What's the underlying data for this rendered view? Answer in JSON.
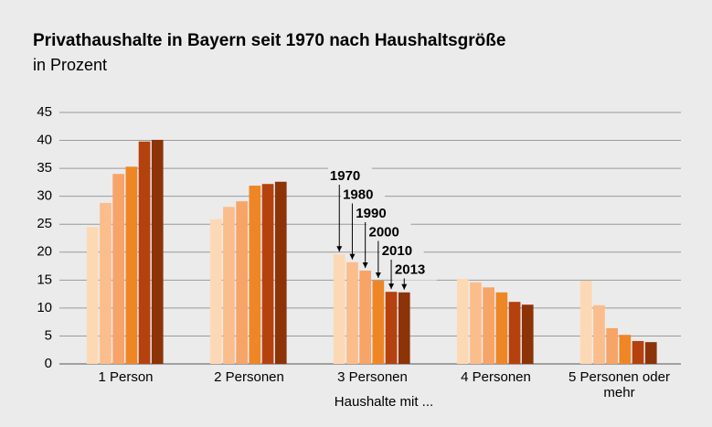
{
  "chart_data": {
    "type": "bar",
    "title": "Privathaushalte in Bayern seit 1970 nach Haushaltsgröße",
    "subtitle": "in Prozent",
    "xlabel": "Haushalte mit ...",
    "categories": [
      "1 Person",
      "2 Personen",
      "3 Personen",
      "4 Personen",
      "5 Personen oder mehr"
    ],
    "series": [
      {
        "name": "1970",
        "color": "#fdd8b5",
        "values": [
          24.5,
          25.9,
          19.6,
          15.2,
          14.9
        ]
      },
      {
        "name": "1980",
        "color": "#fbbd8c",
        "values": [
          28.8,
          28.1,
          18.2,
          14.6,
          10.5
        ]
      },
      {
        "name": "1990",
        "color": "#f7a468",
        "values": [
          34.0,
          29.1,
          16.7,
          13.7,
          6.4
        ]
      },
      {
        "name": "2000",
        "color": "#ef8626",
        "values": [
          35.3,
          31.9,
          14.9,
          12.8,
          5.2
        ]
      },
      {
        "name": "2010",
        "color": "#b5410f",
        "values": [
          39.8,
          32.2,
          12.9,
          11.1,
          4.1
        ]
      },
      {
        "name": "2013",
        "color": "#8c3308",
        "values": [
          40.1,
          32.6,
          12.8,
          10.6,
          3.9
        ]
      }
    ],
    "ylim": [
      0,
      45
    ],
    "yticks": [
      0,
      5,
      10,
      15,
      20,
      25,
      30,
      35,
      40,
      45
    ],
    "grid": true
  }
}
